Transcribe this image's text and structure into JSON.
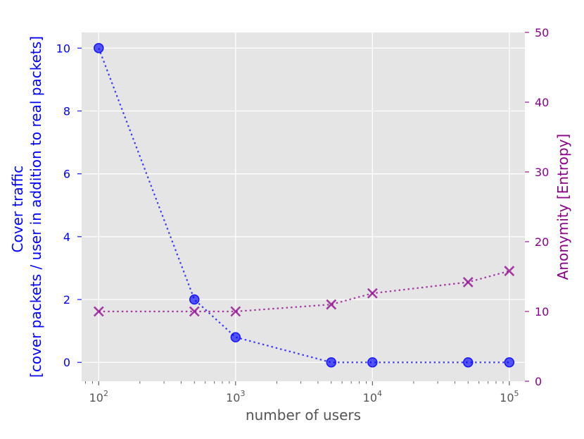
{
  "chart_data": {
    "type": "line",
    "x": [
      100,
      500,
      1000,
      5000,
      10000,
      50000,
      100000
    ],
    "x_scale": "log",
    "xlim": [
      75,
      130000
    ],
    "x_tick_labels": [
      {
        "base": "10",
        "exp": "2"
      },
      {
        "base": "10",
        "exp": "3"
      },
      {
        "base": "10",
        "exp": "4"
      },
      {
        "base": "10",
        "exp": "5"
      }
    ],
    "xlabel": "number of users",
    "grid": true,
    "series": [
      {
        "axis": "left",
        "color": "#0000ff",
        "marker": "circle",
        "linestyle": "dotted",
        "values": [
          10,
          2,
          0.8,
          0,
          0,
          0,
          0
        ]
      },
      {
        "axis": "right",
        "color": "#8b008b",
        "marker": "x",
        "linestyle": "dotted",
        "values": [
          10,
          10,
          10,
          11,
          12.6,
          14.2,
          15.8
        ]
      }
    ],
    "ylim_left": [
      -0.6,
      10.5
    ],
    "yticks_left": [
      "0",
      "2",
      "4",
      "6",
      "8",
      "10"
    ],
    "ylabel_left_line1": "Cover traffic",
    "ylabel_left_line2": "[cover packets / user in addition to real packets]",
    "ylim_right": [
      0,
      50
    ],
    "yticks_right": [
      "0",
      "10",
      "20",
      "30",
      "40",
      "50"
    ],
    "ylabel_right": "Anonymity [Entropy]"
  }
}
